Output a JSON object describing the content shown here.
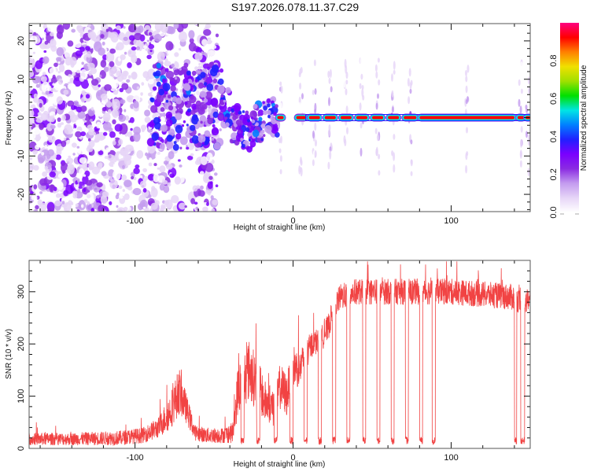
{
  "title": "S197.2026.078.11.37.C29",
  "chart_data": [
    {
      "type": "heatmap",
      "title": "",
      "xlabel": "Height of straight line (km)",
      "ylabel": "Frequency (Hz)",
      "xlim": [
        -167,
        150
      ],
      "ylim": [
        -24.5,
        24.5
      ],
      "xticks": [
        -100,
        0,
        100
      ],
      "xtick_labels": [
        "-100",
        "0",
        "100"
      ],
      "yticks": [
        -20,
        -10,
        0,
        10,
        20
      ],
      "ytick_labels": [
        "-20",
        "-10",
        "0",
        "10",
        "20"
      ],
      "colorbar": {
        "label": "Normalized spectral amplitude",
        "range": [
          0,
          1
        ],
        "ticks": [
          0.0,
          0.2,
          0.4,
          0.6,
          0.8
        ],
        "tick_labels": [
          "0.0",
          "0.2",
          "0.4",
          "0.6",
          "0.8"
        ],
        "colormap": [
          "#ffffff",
          "#e6d5f7",
          "#c39bef",
          "#8a2be2",
          "#7a00ff",
          "#2020ff",
          "#0080ff",
          "#00e5e5",
          "#00e000",
          "#a0e000",
          "#f0e000",
          "#ff8000",
          "#ff0000",
          "#ff0080"
        ]
      },
      "features": {
        "noise_region_km": [
          -167,
          -60
        ],
        "transition_region_km": [
          -90,
          -10
        ],
        "tone_frequency_hz": 0,
        "tone_segments_km": [
          [
            -10,
            -6
          ],
          [
            2,
            8
          ],
          [
            10,
            17
          ],
          [
            20,
            27
          ],
          [
            30,
            37
          ],
          [
            40,
            47
          ],
          [
            50,
            57
          ],
          [
            60,
            67
          ],
          [
            70,
            78
          ],
          [
            80,
            140
          ],
          [
            142,
            146
          ],
          [
            147,
            150
          ]
        ],
        "tone_peak_amplitude": 0.9
      }
    },
    {
      "type": "line",
      "title": "",
      "xlabel": "Height of straight line (km)",
      "ylabel": "SNR (10 * v/v)",
      "xlim": [
        -167,
        150
      ],
      "ylim": [
        0,
        360
      ],
      "xticks": [
        -100,
        0,
        100
      ],
      "xtick_labels": [
        "-100",
        "0",
        "100"
      ],
      "yticks": [
        0,
        100,
        200,
        300
      ],
      "ytick_labels": [
        "0",
        "100",
        "200",
        "300"
      ],
      "color": "#ee2222",
      "series": [
        {
          "name": "SNR",
          "x": [
            -167,
            -140,
            -110,
            -95,
            -85,
            -78,
            -72,
            -68,
            -62,
            -55,
            -45,
            -38,
            -35,
            -28,
            -22,
            -18,
            -12,
            -8,
            -4,
            0,
            4,
            8,
            12,
            18,
            22,
            26,
            30,
            40,
            60,
            80,
            100,
            120,
            138,
            142,
            146,
            150
          ],
          "mean": [
            18,
            18,
            20,
            25,
            40,
            70,
            110,
            80,
            30,
            25,
            25,
            30,
            110,
            150,
            120,
            90,
            80,
            120,
            100,
            160,
            150,
            180,
            200,
            210,
            230,
            270,
            290,
            300,
            300,
            300,
            300,
            295,
            290,
            285,
            280,
            285
          ],
          "noise": [
            12,
            12,
            14,
            15,
            20,
            35,
            45,
            30,
            15,
            15,
            15,
            20,
            50,
            60,
            50,
            40,
            40,
            45,
            40,
            40,
            35,
            30,
            25,
            25,
            25,
            25,
            25,
            25,
            25,
            25,
            25,
            25,
            25,
            25,
            25,
            25
          ]
        }
      ],
      "dropouts_km": [
        [
          -33,
          -31
        ],
        [
          -23,
          -21
        ],
        [
          -12,
          -10
        ],
        [
          -2,
          0
        ],
        [
          7,
          9
        ],
        [
          16,
          18
        ],
        [
          25,
          27
        ],
        [
          34,
          36
        ],
        [
          44,
          46
        ],
        [
          53,
          55
        ],
        [
          62,
          64
        ],
        [
          71,
          73
        ],
        [
          80,
          82
        ],
        [
          88,
          90
        ],
        [
          140,
          141.5
        ],
        [
          144,
          146.5
        ]
      ],
      "dropout_level": 15
    }
  ]
}
